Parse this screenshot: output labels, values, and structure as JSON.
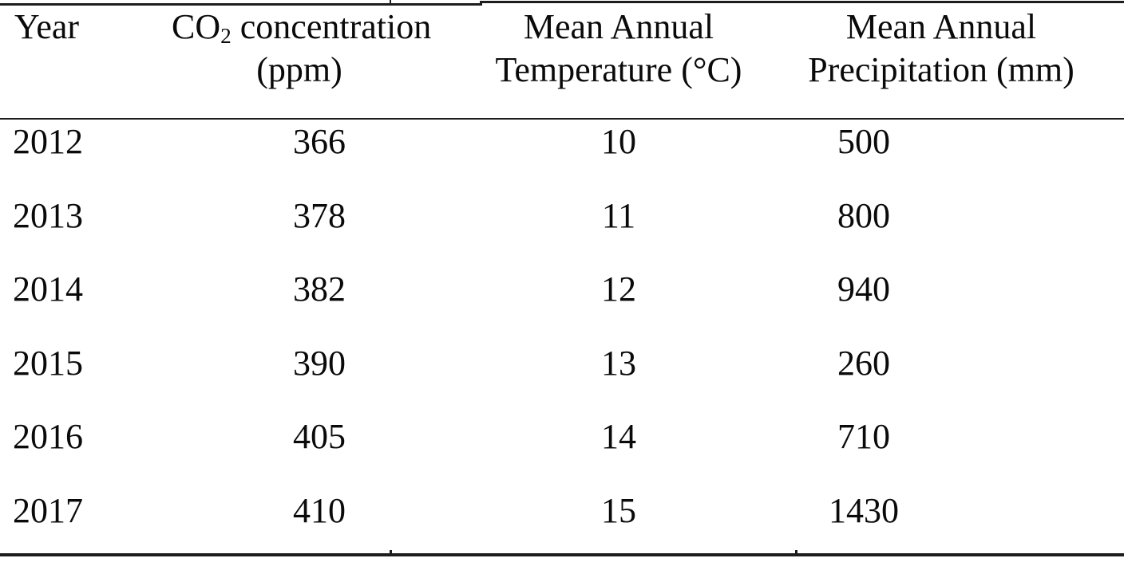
{
  "table": {
    "headers": {
      "year": "Year",
      "co2": {
        "pre": "CO",
        "sub": "2",
        "post": " concentration",
        "unit": "(ppm)"
      },
      "temp": {
        "line1": "Mean Annual",
        "line2": "Temperature (°C)"
      },
      "precip": {
        "line1": "Mean Annual",
        "line2": "Precipitation (mm)"
      }
    },
    "rows": [
      {
        "year": "2012",
        "co2": "366",
        "temp": "10",
        "precip": "500"
      },
      {
        "year": "2013",
        "co2": "378",
        "temp": "11",
        "precip": "800"
      },
      {
        "year": "2014",
        "co2": "382",
        "temp": "12",
        "precip": "940"
      },
      {
        "year": "2015",
        "co2": "390",
        "temp": "13",
        "precip": "260"
      },
      {
        "year": "2016",
        "co2": "405",
        "temp": "14",
        "precip": "710"
      },
      {
        "year": "2017",
        "co2": "410",
        "temp": "15",
        "precip": "1430"
      }
    ]
  },
  "chart_data": {
    "type": "table",
    "columns": [
      "Year",
      "CO2 concentration (ppm)",
      "Mean Annual Temperature (°C)",
      "Mean Annual Precipitation (mm)"
    ],
    "rows": [
      [
        2012,
        366,
        10,
        500
      ],
      [
        2013,
        378,
        11,
        800
      ],
      [
        2014,
        382,
        12,
        940
      ],
      [
        2015,
        390,
        13,
        260
      ],
      [
        2016,
        405,
        14,
        710
      ],
      [
        2017,
        410,
        15,
        1430
      ]
    ]
  },
  "colors": {
    "text": "#0a0a0a",
    "border": "#1d1d1d",
    "background": "#ffffff"
  }
}
